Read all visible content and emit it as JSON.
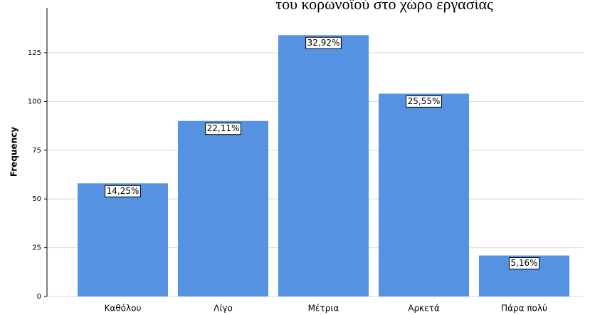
{
  "chart_data": {
    "type": "bar",
    "title": "του κορωνοϊού στο χώρο εργασίας",
    "y_label": "Frequency",
    "categories": [
      "Καθόλου",
      "Λίγο",
      "Μέτρια",
      "Αρκετά",
      "Πάρα πολύ"
    ],
    "values": [
      58,
      90,
      134,
      104,
      21
    ],
    "data_labels": [
      "14,25%",
      "22,11%",
      "32,92%",
      "25,55%",
      "5,16%"
    ],
    "color": "#5592e2",
    "ylim": [
      0,
      148
    ],
    "yticks": [
      0,
      25,
      50,
      75,
      100,
      125
    ],
    "grid": true
  }
}
